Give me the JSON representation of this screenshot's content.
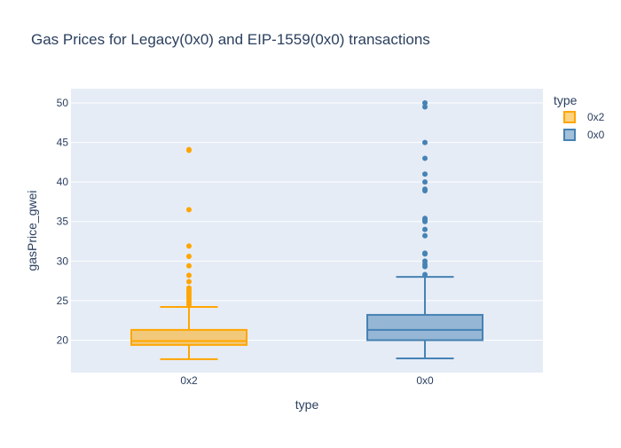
{
  "chart_data": {
    "type": "box",
    "title": "Gas Prices for Legacy(0x0) and EIP-1559(0x0) transactions",
    "xlabel": "type",
    "ylabel": "gasPrice_gwei",
    "ylim": [
      15.9,
      51.8
    ],
    "yticks": [
      20,
      25,
      30,
      35,
      40,
      45,
      50
    ],
    "categories": [
      "0x2",
      "0x0"
    ],
    "grid": true,
    "legend": {
      "title": "type",
      "position": "top-right"
    },
    "series": [
      {
        "name": "0x2",
        "color": "#FFA500",
        "fill": "rgba(255,165,0,0.5)",
        "lower_fence": 17.6,
        "q1": 19.4,
        "median": 19.9,
        "q3": 21.3,
        "upper_fence": 24.2,
        "outliers": [
          24.5,
          24.8,
          25.1,
          25.4,
          25.7,
          26.0,
          26.3,
          26.6,
          27.4,
          28.2,
          29.4,
          30.6,
          31.9,
          36.5,
          44.0,
          44.1
        ]
      },
      {
        "name": "0x0",
        "color": "#4682B4",
        "fill": "rgba(70,130,180,0.5)",
        "lower_fence": 17.7,
        "q1": 20.0,
        "median": 21.3,
        "q3": 23.2,
        "upper_fence": 28.0,
        "outliers": [
          28.3,
          29.3,
          29.6,
          30.0,
          30.9,
          31.0,
          33.2,
          34.0,
          35.0,
          35.2,
          35.4,
          38.9,
          39.1,
          40.0,
          41.0,
          43.0,
          45.0,
          49.5,
          50.0
        ]
      }
    ]
  }
}
